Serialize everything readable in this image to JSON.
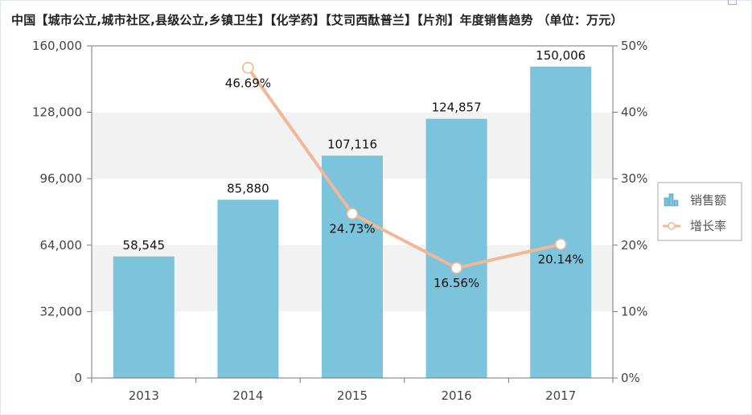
{
  "chart_data": {
    "type": "bar",
    "title": "中国【城市公立,城市社区,县级公立,乡镇卫生】【化学药】【艾司西酞普兰】【片剂】年度销售趋势 （单位：万元）",
    "categories": [
      "2013",
      "2014",
      "2015",
      "2016",
      "2017"
    ],
    "series": [
      {
        "name": "销售额",
        "type": "bar",
        "axis": "left",
        "values": [
          58545,
          85880,
          107116,
          124857,
          150006
        ],
        "labels": [
          "58,545",
          "85,880",
          "107,116",
          "124,857",
          "150,006"
        ],
        "color": "#7cc4dc"
      },
      {
        "name": "增长率",
        "type": "line",
        "axis": "right",
        "values": [
          null,
          46.69,
          24.73,
          16.56,
          20.14
        ],
        "labels": [
          "",
          "46.69%",
          "24.73%",
          "16.56%",
          "20.14%"
        ],
        "color": "#f0b896"
      }
    ],
    "y_left": {
      "min": 0,
      "max": 160000,
      "ticks": [
        0,
        32000,
        64000,
        96000,
        128000,
        160000
      ],
      "tick_labels": [
        "0",
        "32,000",
        "64,000",
        "96,000",
        "128,000",
        "160,000"
      ]
    },
    "y_right": {
      "min": 0,
      "max": 50,
      "ticks": [
        0,
        10,
        20,
        30,
        40,
        50
      ],
      "tick_labels": [
        "0%",
        "10%",
        "20%",
        "30%",
        "40%",
        "50%"
      ]
    },
    "legend": {
      "position": "right",
      "entries": [
        "销售额",
        "增长率"
      ]
    },
    "colors": {
      "bar": "#7cc4dc",
      "line": "#f0b896",
      "axis": "#777777",
      "band": "#f2f2f2",
      "legend_border": "#aaaaaa"
    }
  }
}
